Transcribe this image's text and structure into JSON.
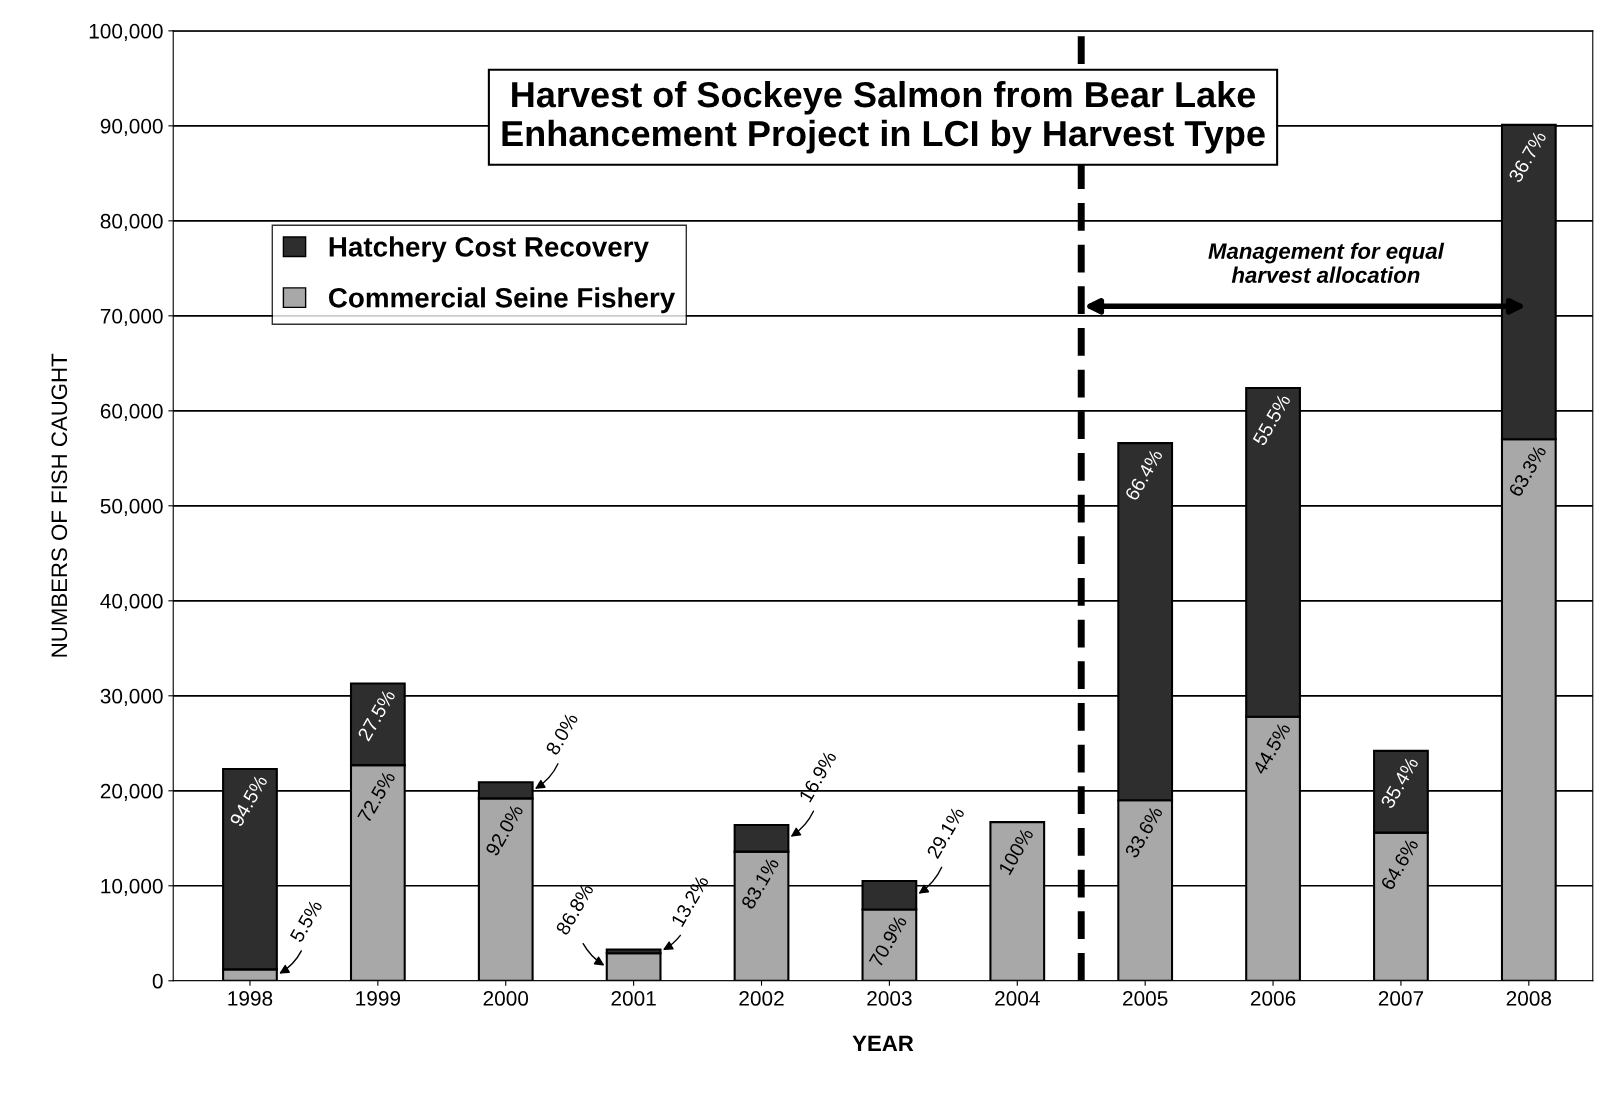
{
  "chart_data": {
    "type": "bar",
    "stacked": true,
    "title": "Harvest of Sockeye Salmon from Bear Lake\nEnhancement Project in LCI by Harvest Type",
    "xlabel": "YEAR",
    "ylabel": "NUMBERS OF FISH CAUGHT",
    "x": [
      1998,
      1999,
      2000,
      2001,
      2002,
      2003,
      2004,
      2005,
      2006,
      2007,
      2008
    ],
    "series": [
      {
        "name": "Commercial Seine Fishery",
        "color": "#a8a8a8",
        "values": [
          1200,
          22700,
          19200,
          2900,
          13600,
          7500,
          16700,
          19000,
          27800,
          15600,
          57000
        ]
      },
      {
        "name": "Hatchery Cost Recovery",
        "color": "#2e2e2e",
        "values": [
          21100,
          8600,
          1700,
          400,
          2800,
          3000,
          null,
          37600,
          34600,
          8600,
          33100
        ]
      }
    ],
    "xlim": [
      1997.4,
      2008.5
    ],
    "xticks": [
      1998,
      1999,
      2000,
      2001,
      2002,
      2003,
      2004,
      2005,
      2006,
      2007,
      2008
    ],
    "ylim": [
      0,
      100000
    ],
    "yticks": [
      0,
      {
        "value": 10000,
        "label": "10,000"
      },
      {
        "value": 20000,
        "label": "20,000"
      },
      {
        "value": 30000,
        "label": "30,000"
      },
      {
        "value": 40000,
        "label": "40,000"
      },
      {
        "value": 50000,
        "label": "50,000"
      },
      {
        "value": 60000,
        "label": "60,000"
      },
      {
        "value": 70000,
        "label": "70,000"
      },
      {
        "value": 80000,
        "label": "80,000"
      },
      {
        "value": 90000,
        "label": "90,000"
      },
      {
        "value": 100000,
        "label": "100,000"
      }
    ],
    "ref_lines": [
      {
        "axis": "x",
        "value": 2004.5,
        "label": null,
        "color": "#000000",
        "line_style": "dashed"
      }
    ],
    "annotations": [
      "Management for equal\nharvest allocation",
      {
        "text": "5.5%",
        "x": 1998,
        "y": 1200
      },
      {
        "text": "94.5%",
        "x": 1998,
        "y": 22300
      },
      {
        "text": "72.5%",
        "x": 1999,
        "y": 22700
      },
      {
        "text": "27.5%",
        "x": 1999,
        "y": 31300
      },
      {
        "text": "92.0%",
        "x": 2000,
        "y": 19200
      },
      {
        "text": "8.0%",
        "x": 2000,
        "y": 20900
      },
      {
        "text": "86.8%",
        "x": 2001,
        "y": 2900
      },
      {
        "text": "13.2%",
        "x": 2001,
        "y": 3300
      },
      {
        "text": "83.1%",
        "x": 2002,
        "y": 13600
      },
      {
        "text": "16.9%",
        "x": 2002,
        "y": 16400
      },
      {
        "text": "70.9%",
        "x": 2003,
        "y": 7500
      },
      {
        "text": "29.1%",
        "x": 2003,
        "y": 10500
      },
      {
        "text": "100%",
        "x": 2004,
        "y": 16700
      },
      {
        "text": "33.6%",
        "x": 2005,
        "y": 19000
      },
      {
        "text": "66.4%",
        "x": 2005,
        "y": 56600
      },
      {
        "text": "44.5%",
        "x": 2006,
        "y": 27800
      },
      {
        "text": "55.5%",
        "x": 2006,
        "y": 62400
      },
      {
        "text": "64.6%",
        "x": 2007,
        "y": 15600
      },
      {
        "text": "35.4%",
        "x": 2007,
        "y": 24200
      },
      {
        "text": "63.3%",
        "x": 2008,
        "y": 57000
      },
      {
        "text": "36.7%",
        "x": 2008,
        "y": 90100
      }
    ],
    "grid": "y",
    "legend": "top left"
  }
}
